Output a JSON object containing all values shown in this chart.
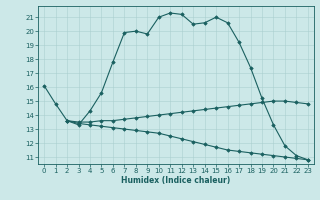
{
  "title": "",
  "xlabel": "Humidex (Indice chaleur)",
  "ylabel": "",
  "xlim": [
    -0.5,
    23.5
  ],
  "ylim": [
    10.5,
    21.8
  ],
  "yticks": [
    11,
    12,
    13,
    14,
    15,
    16,
    17,
    18,
    19,
    20,
    21
  ],
  "xticks": [
    0,
    1,
    2,
    3,
    4,
    5,
    6,
    7,
    8,
    9,
    10,
    11,
    12,
    13,
    14,
    15,
    16,
    17,
    18,
    19,
    20,
    21,
    22,
    23
  ],
  "bg_color": "#cce8e8",
  "line_color": "#1a6060",
  "line1_x": [
    0,
    1,
    2,
    3,
    4,
    5,
    6,
    7,
    8,
    9,
    10,
    11,
    12,
    13,
    14,
    15,
    16,
    17,
    18,
    19,
    20,
    21,
    22,
    23
  ],
  "line1_y": [
    16.1,
    14.8,
    13.6,
    13.3,
    14.3,
    15.6,
    17.8,
    19.9,
    20.0,
    19.8,
    21.0,
    21.3,
    21.2,
    20.5,
    20.6,
    21.0,
    20.6,
    19.2,
    17.4,
    15.2,
    13.3,
    11.8,
    11.1,
    10.8
  ],
  "line2_x": [
    2,
    3,
    4,
    5,
    6,
    7,
    8,
    9,
    10,
    11,
    12,
    13,
    14,
    15,
    16,
    17,
    18,
    19,
    20,
    21,
    22,
    23
  ],
  "line2_y": [
    13.6,
    13.5,
    13.5,
    13.6,
    13.6,
    13.7,
    13.8,
    13.9,
    14.0,
    14.1,
    14.2,
    14.3,
    14.4,
    14.5,
    14.6,
    14.7,
    14.8,
    14.9,
    15.0,
    15.0,
    14.9,
    14.8
  ],
  "line3_x": [
    2,
    3,
    4,
    5,
    6,
    7,
    8,
    9,
    10,
    11,
    12,
    13,
    14,
    15,
    16,
    17,
    18,
    19,
    20,
    21,
    22,
    23
  ],
  "line3_y": [
    13.6,
    13.4,
    13.3,
    13.2,
    13.1,
    13.0,
    12.9,
    12.8,
    12.7,
    12.5,
    12.3,
    12.1,
    11.9,
    11.7,
    11.5,
    11.4,
    11.3,
    11.2,
    11.1,
    11.0,
    10.9,
    10.8
  ]
}
